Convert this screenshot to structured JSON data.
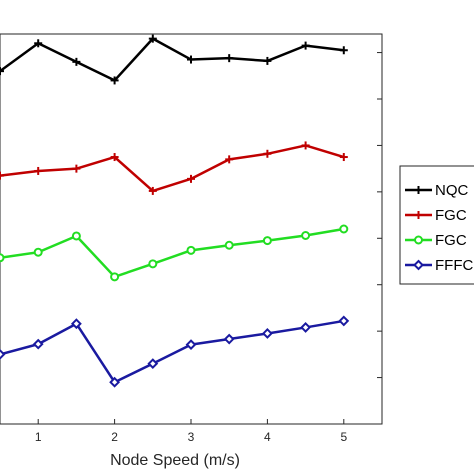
{
  "chart_data": {
    "type": "line",
    "xlabel": "Node Speed (m/s)",
    "ylabel": "",
    "title": "",
    "x": [
      0.5,
      1,
      1.5,
      2,
      2.5,
      3,
      3.5,
      4,
      4.5,
      5
    ],
    "xticks": [
      "1",
      "2",
      "3",
      "4",
      "5"
    ],
    "xlim": [
      0.5,
      5.5
    ],
    "ylim": [
      0,
      8.4
    ],
    "grid": false,
    "legend_position": "right, partially cut off",
    "series": [
      {
        "name": "NQC",
        "color": "#000000",
        "marker": "plus",
        "values": [
          7.6,
          8.2,
          7.8,
          7.4,
          8.3,
          7.85,
          7.88,
          7.82,
          8.15,
          8.05
        ]
      },
      {
        "name": "FGC",
        "color": "#c00000",
        "marker": "plus",
        "values": [
          5.35,
          5.45,
          5.5,
          5.75,
          5.02,
          5.28,
          5.7,
          5.82,
          6.0,
          5.75
        ]
      },
      {
        "name": "FGC",
        "color": "#22dd22",
        "marker": "circle",
        "values": [
          3.58,
          3.7,
          4.05,
          3.17,
          3.45,
          3.74,
          3.85,
          3.95,
          4.06,
          4.2
        ]
      },
      {
        "name": "FFFC",
        "color": "#1a1aa0",
        "marker": "diamond",
        "values": [
          1.5,
          1.72,
          2.16,
          0.9,
          1.3,
          1.71,
          1.83,
          1.95,
          2.08,
          2.22
        ]
      }
    ]
  }
}
